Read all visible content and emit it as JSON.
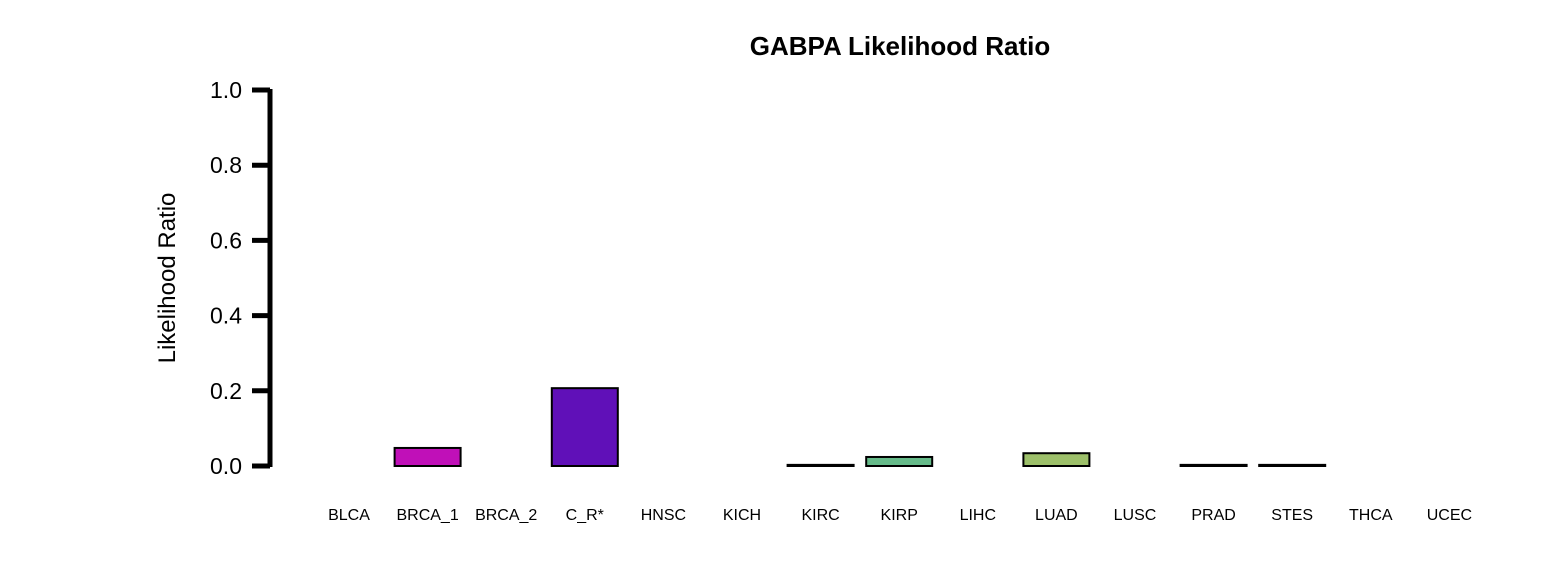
{
  "chart_data": {
    "type": "bar",
    "title": "GABPA Likelihood Ratio",
    "xlabel": "",
    "ylabel": "Likelihood Ratio",
    "ylim": [
      0,
      1.0
    ],
    "yticks": [
      "0.0",
      "0.2",
      "0.4",
      "0.6",
      "0.8",
      "1.0"
    ],
    "categories": [
      "BLCA",
      "BRCA_1",
      "BRCA_2",
      "C_R*",
      "HNSC",
      "KICH",
      "KIRC",
      "KIRP",
      "LIHC",
      "LUAD",
      "LUSC",
      "PRAD",
      "STES",
      "THCA",
      "UCEC"
    ],
    "values": [
      0.0,
      0.048,
      0.0,
      0.207,
      0.0,
      0.0,
      0.003,
      0.024,
      0.0,
      0.034,
      0.0,
      0.003,
      0.003,
      0.0,
      0.0
    ],
    "colors": [
      "#8B1A6B",
      "#C010B8",
      "#8A00C0",
      "#6010B8",
      "#3A1AA0",
      "#2A2A90",
      "#2F6A8A",
      "#66BB8A",
      "#4FA060",
      "#9DC06A",
      "#B0C060",
      "#C8B070",
      "#B07040",
      "#A05030",
      "#803020"
    ],
    "grid": false,
    "legend": "none"
  }
}
